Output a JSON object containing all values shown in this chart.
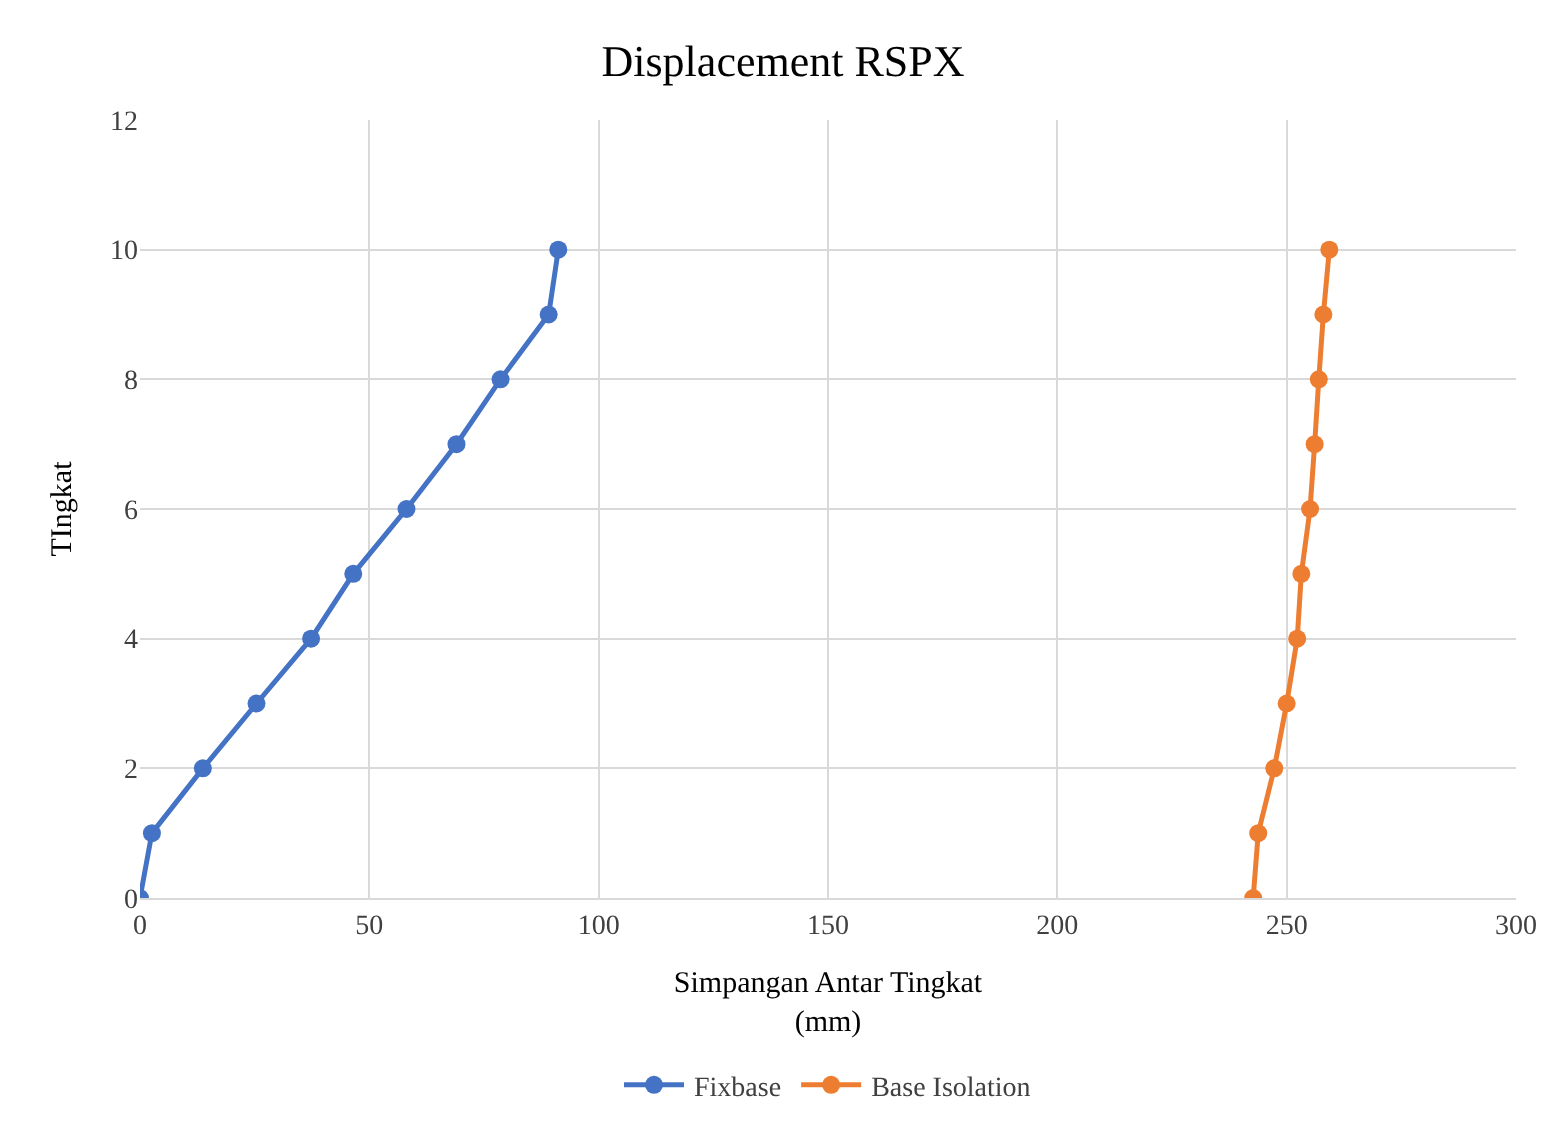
{
  "chart_data": {
    "type": "line",
    "title": "Displacement RSPX",
    "xlabel": "Simpangan Antar Tingkat\n(mm)",
    "ylabel": "TIngkat",
    "series": [
      {
        "name": "Fixbase",
        "color": "#4472c4",
        "x": [
          0,
          2.6,
          13.7,
          25.4,
          37.3,
          46.5,
          58.1,
          69,
          78.6,
          89.1,
          91.2
        ],
        "values": [
          0,
          1,
          2,
          3,
          4,
          5,
          6,
          7,
          8,
          9,
          10
        ]
      },
      {
        "name": "Base Isolation",
        "color": "#ed7d31",
        "x": [
          242.7,
          243.8,
          247.3,
          250,
          252.3,
          253.2,
          255.1,
          256.1,
          257,
          258,
          259.3
        ],
        "values": [
          0,
          1,
          2,
          3,
          4,
          5,
          6,
          7,
          8,
          9,
          10
        ]
      }
    ],
    "xlim": [
      0,
      300
    ],
    "xticks": [
      0,
      50,
      100,
      150,
      200,
      250,
      300
    ],
    "ylim": [
      0,
      12
    ],
    "yticks": [
      0,
      2,
      4,
      6,
      8,
      10,
      12
    ],
    "grid": true,
    "legend": "bottom",
    "marker": "circle",
    "line_style": "solid"
  }
}
